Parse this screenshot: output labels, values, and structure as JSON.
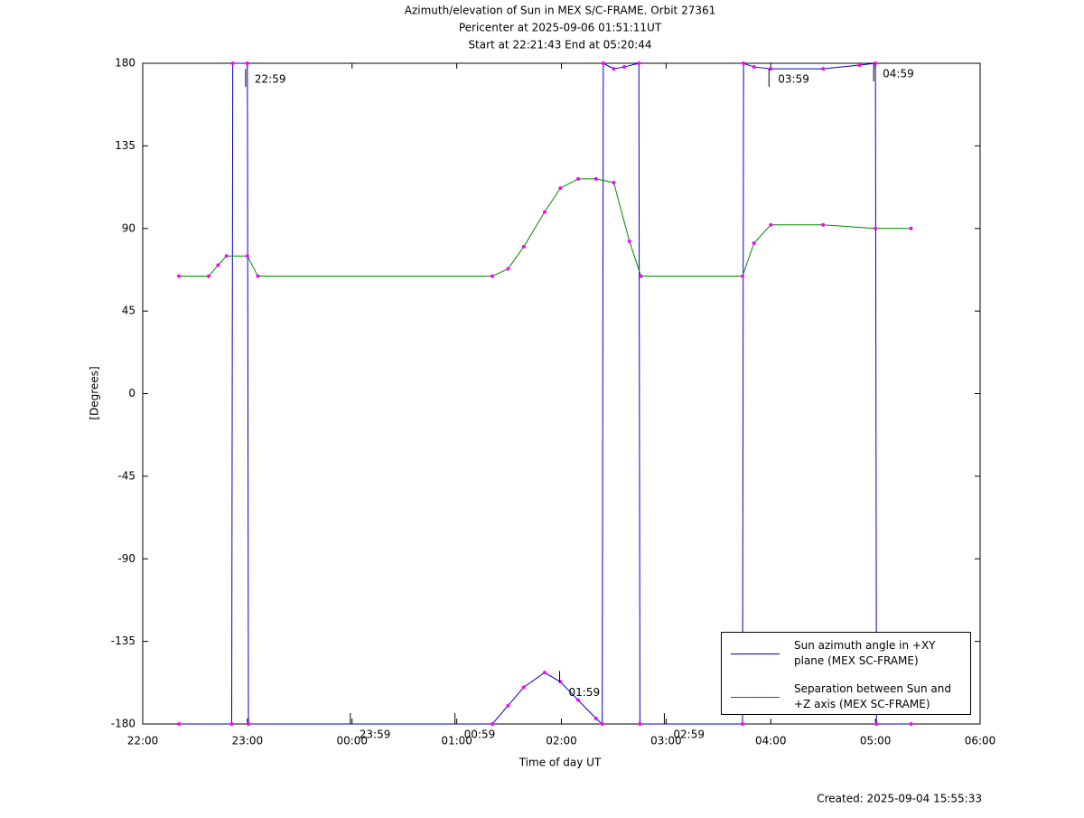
{
  "chart_data": {
    "type": "line",
    "title": [
      "Azimuth/elevation of Sun in MEX S/C-FRAME.  Orbit 27361",
      "Pericenter at 2025-09-06 01:51:11UT",
      "Start at 22:21:43 End at 05:20:44"
    ],
    "xlabel": "Time of day UT",
    "ylabel": "[Degrees]",
    "footer": "Created: 2025-09-04 15:55:33",
    "xlim": [
      22,
      30
    ],
    "xticks": [
      {
        "value": 22,
        "label": "22:00"
      },
      {
        "value": 23,
        "label": "23:00"
      },
      {
        "value": 24,
        "label": "00:00"
      },
      {
        "value": 25,
        "label": "01:00"
      },
      {
        "value": 26,
        "label": "02:00"
      },
      {
        "value": 27,
        "label": "03:00"
      },
      {
        "value": 28,
        "label": "04:00"
      },
      {
        "value": 29,
        "label": "05:00"
      },
      {
        "value": 30,
        "label": "06:00"
      }
    ],
    "ylim": [
      -180,
      180
    ],
    "yticks": [
      180,
      135,
      90,
      45,
      0,
      -45,
      -90,
      -135,
      -180
    ],
    "grid": false,
    "legend": "lower right",
    "marker_color": "#ff00ff",
    "series": [
      {
        "name": "Sun azimuth angle in +XY plane (MEX SC-FRAME)",
        "color": "#0000cc",
        "x": [
          22.345,
          22.85,
          22.86,
          23.0,
          23.01,
          25.34,
          25.49,
          25.64,
          25.84,
          25.99,
          26.16,
          26.33,
          26.39,
          26.4,
          26.5,
          26.6,
          26.74,
          26.75,
          27.73,
          27.74,
          27.84,
          28.0,
          28.5,
          28.85,
          29.0,
          29.01,
          29.34
        ],
        "values": [
          -180,
          -180,
          180,
          180,
          -180,
          -180,
          -170,
          -160,
          -152,
          -157,
          -167,
          -177,
          -180,
          180,
          177,
          178,
          180,
          -180,
          -180,
          180,
          178,
          177,
          177,
          179,
          180,
          -180,
          -180
        ]
      },
      {
        "name": "Separation between Sun and +Z axis (MEX SC-FRAME)",
        "color": "#008800",
        "x": [
          22.345,
          22.63,
          22.72,
          22.8,
          23.0,
          23.1,
          25.34,
          25.49,
          25.64,
          25.84,
          25.99,
          26.16,
          26.33,
          26.5,
          26.65,
          26.76,
          27.73,
          27.84,
          28.0,
          28.5,
          29.0,
          29.34
        ],
        "values": [
          64,
          64,
          70,
          75,
          75,
          64,
          64,
          68,
          80,
          99,
          112,
          117,
          117,
          115,
          83,
          64,
          64,
          82,
          92,
          92,
          90,
          90
        ]
      }
    ],
    "annotations": [
      {
        "text": "22:59",
        "x": 22.983,
        "y": 177
      },
      {
        "text": "23:59",
        "x": 23.983,
        "y": -180
      },
      {
        "text": "00:59",
        "x": 24.983,
        "y": -180
      },
      {
        "text": "01:59",
        "x": 25.983,
        "y": -157
      },
      {
        "text": "02:59",
        "x": 26.983,
        "y": -180
      },
      {
        "text": "03:59",
        "x": 27.983,
        "y": 177
      },
      {
        "text": "04:59",
        "x": 28.983,
        "y": 180
      }
    ]
  }
}
